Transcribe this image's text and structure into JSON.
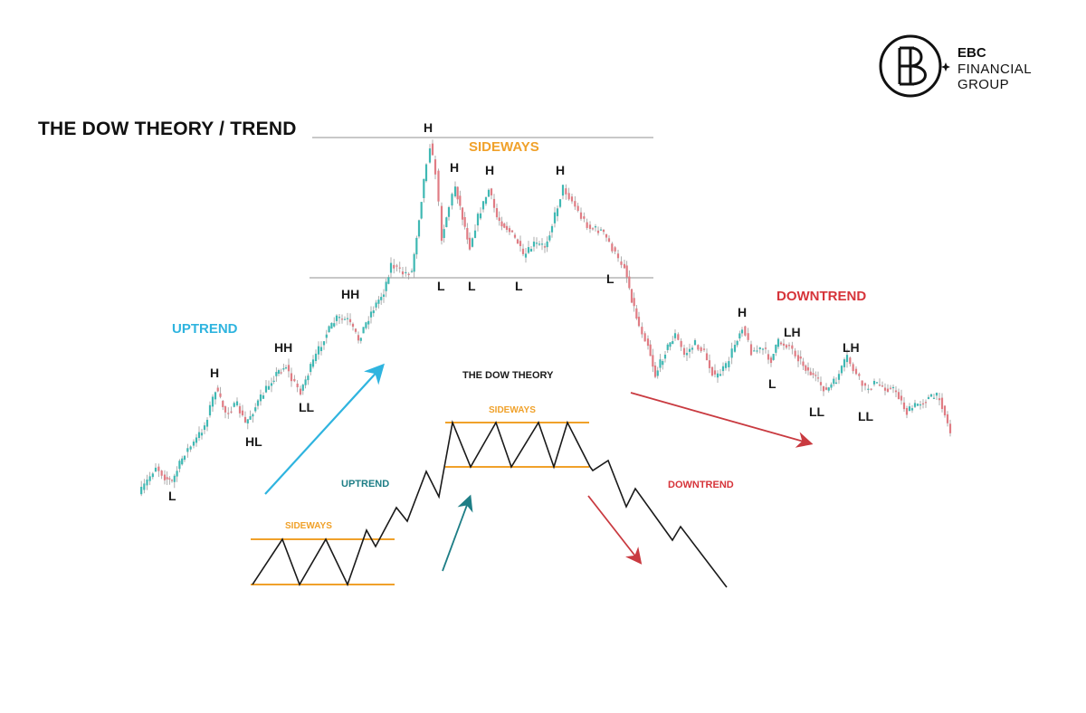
{
  "brand": {
    "name": "EBC",
    "line2": "FINANCIAL",
    "line3": "GROUP",
    "logo_icon": "ebc-monogram-icon"
  },
  "title": "THE DOW THEORY / TREND",
  "upper_chart": {
    "sideways_label": "SIDEWAYS",
    "uptrend_label": "UPTREND",
    "downtrend_label": "DOWNTREND",
    "points": {
      "l1": "L",
      "h1": "H",
      "hl": "HL",
      "hh1": "HH",
      "ll1": "LL",
      "hh2": "HH",
      "top_h": "H",
      "h2": "H",
      "h3": "H",
      "h4": "H",
      "sl1": "L",
      "sl2": "L",
      "sl3": "L",
      "sl4": "L",
      "dh": "H",
      "dl1": "L",
      "lh1": "LH",
      "lh2": "LH",
      "ll2": "LL",
      "ll3": "LL"
    }
  },
  "lower_diagram": {
    "title": "THE DOW THEORY",
    "sideways_top": "SIDEWAYS",
    "sideways_bottom": "SIDEWAYS",
    "uptrend": "UPTREND",
    "downtrend": "DOWNTREND"
  },
  "colors": {
    "sideways": "#f0a12a",
    "uptrend": "#2fb4df",
    "downtrend": "#d6343a",
    "teal": "#1e7e86",
    "candle_up": "#3fb8b3",
    "candle_down": "#e07c84"
  }
}
